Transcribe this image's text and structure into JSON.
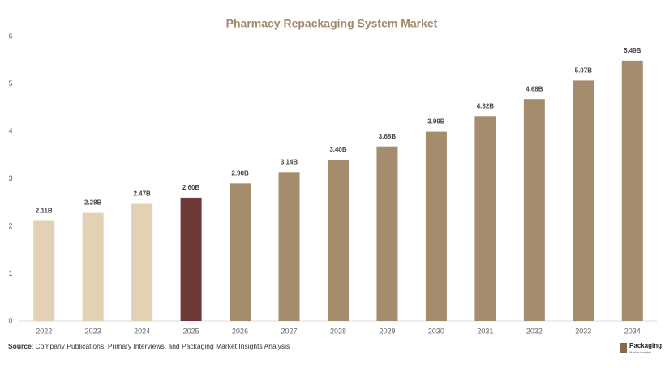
{
  "chart_data": {
    "type": "bar",
    "title": "Pharmacy Repackaging System Market",
    "categories": [
      "2022",
      "2023",
      "2024",
      "2025",
      "2026",
      "2027",
      "2028",
      "2029",
      "2030",
      "2031",
      "2032",
      "2033",
      "2034"
    ],
    "values": [
      2.11,
      2.28,
      2.47,
      2.6,
      2.9,
      3.14,
      3.4,
      3.68,
      3.99,
      4.32,
      4.68,
      5.07,
      5.49
    ],
    "value_labels": [
      "2.11B",
      "2.28B",
      "2.47B",
      "2.60B",
      "2.90B",
      "3.14B",
      "3.40B",
      "3.68B",
      "3.99B",
      "4.32B",
      "4.68B",
      "5.07B",
      "5.49B"
    ],
    "colors": [
      "#e3d1b3",
      "#e3d1b3",
      "#e3d1b3",
      "#6e3a39",
      "#a58c6c",
      "#a58c6c",
      "#a58c6c",
      "#a58c6c",
      "#a58c6c",
      "#a58c6c",
      "#a58c6c",
      "#a58c6c",
      "#a58c6c"
    ],
    "ylim": [
      0,
      6
    ],
    "yticks": [
      0,
      1,
      2,
      3,
      4,
      5,
      6
    ],
    "grid": false
  },
  "source_label": "Source",
  "source_text": ": Company Publications, Primary Interviews, and Packaging Market Insights Analysis",
  "logo": {
    "name": "Packaging",
    "tagline": "Market Insights"
  }
}
